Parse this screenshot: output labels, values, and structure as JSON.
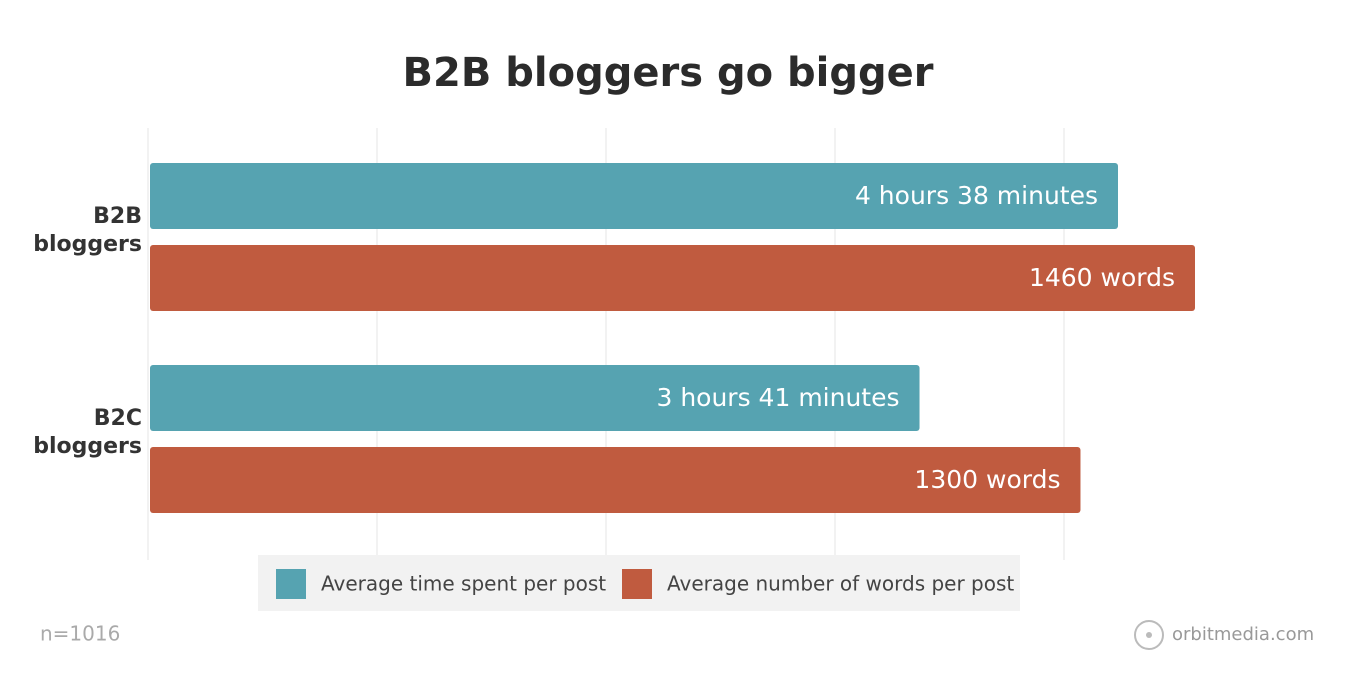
{
  "chart_data": {
    "type": "bar",
    "orientation": "horizontal",
    "title": "B2B bloggers go bigger",
    "categories": [
      "B2B bloggers",
      "B2C bloggers"
    ],
    "series": [
      {
        "name": "Average time spent per post",
        "color": "#56a3b1",
        "values": [
          278,
          221
        ],
        "value_labels": [
          "4 hours 38 minutes",
          "3 hours 41 minutes"
        ]
      },
      {
        "name": "Average number of words per post",
        "color": "#c05b3f",
        "values": [
          1460,
          1300
        ],
        "value_labels": [
          "1460 words",
          "1300 words"
        ]
      }
    ],
    "grid": true,
    "note": "n=1016",
    "source": "orbitmedia.com"
  }
}
